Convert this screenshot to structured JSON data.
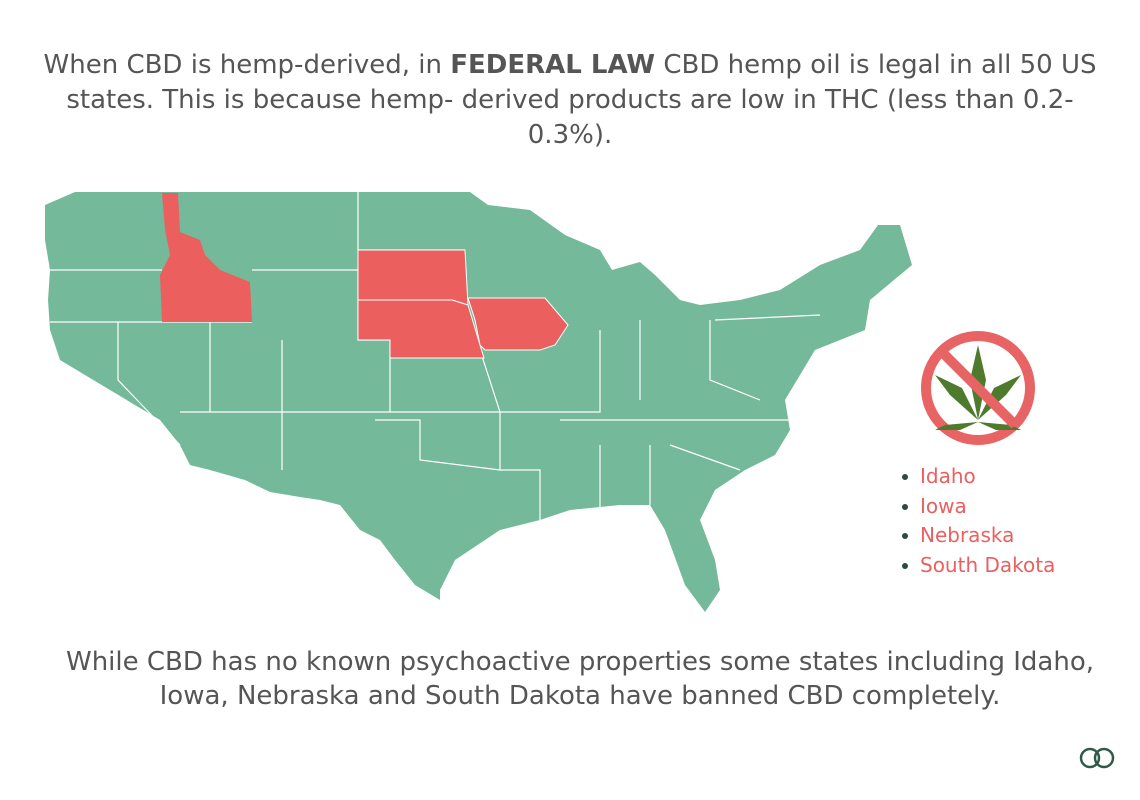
{
  "header": {
    "text_before": "When CBD is hemp-derived, in ",
    "bold": "FEDERAL LAW",
    "text_after": " CBD hemp oil is legal in all 50 US states. This is because hemp- derived products are low in THC (less than 0.2-0.3%)."
  },
  "banned_states": [
    "Idaho",
    "Iowa",
    "Nebraska",
    "South Dakota"
  ],
  "footer": {
    "text": "While CBD has no known psychoactive properties some states including Idaho, Iowa, Nebraska and South Dakota have banned CBD completely."
  }
}
